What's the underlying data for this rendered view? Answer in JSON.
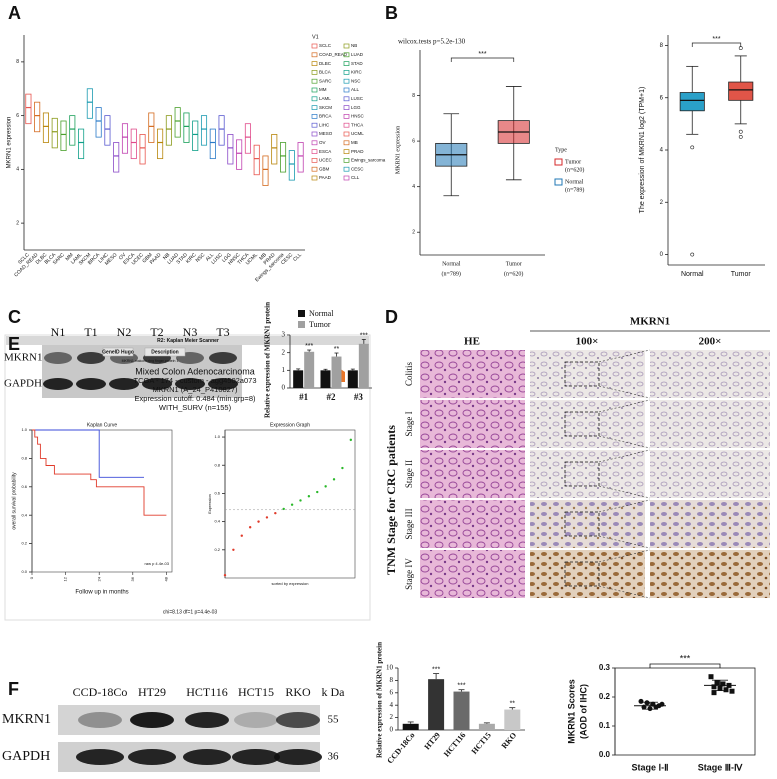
{
  "panel_labels": [
    "A",
    "B",
    "C",
    "D",
    "E",
    "F"
  ],
  "blot_c": {
    "lanes": [
      "N1",
      "T1",
      "N2",
      "T2",
      "N3",
      "T3"
    ],
    "rows": [
      "MKRN1",
      "GAPDH"
    ]
  },
  "ihc_d": {
    "title": "MKRN1",
    "columns": [
      "HE",
      "100×",
      "200×"
    ],
    "rows": [
      "Colitis",
      "Stage I",
      "Stage II",
      "Stage III",
      "Stage IV"
    ],
    "group": "TNM Stage for CRC patients"
  },
  "km_header": {
    "header": "R2: Kaplan Meier Scanner",
    "tabs": [
      "GeneID Hugo",
      "Description"
    ],
    "gene_desc": "MKRN1 makorin ring finger protein 1",
    "lines": [
      "Mixed Colon Adenocarcinoma",
      "TCGA - 174 - custom - agg4502a073",
      "MKRN1 (A_24_P410827)",
      "Expression cutoff: 0.484 (min.grp=8)",
      "WITH_SURV (n=155)"
    ],
    "footer": "chi=8.13 df=1 p=4.4e-03"
  },
  "blot_f": {
    "lanes": [
      "CCD-18Co",
      "HT29",
      "HCT116",
      "HCT15",
      "RKO"
    ],
    "rows": [
      "MKRN1",
      "GAPDH"
    ],
    "kda_label": "k Da",
    "kda": [
      "55",
      "36"
    ]
  },
  "chart_data": [
    {
      "type": "box",
      "y_label": "MKRN1 expression",
      "legend_title": "V1",
      "categories": [
        "SCLC",
        "COAD_READ",
        "DLBC",
        "BLCA",
        "SARC",
        "MM",
        "LAML",
        "SKCM",
        "BRCA",
        "LIHC",
        "MESO",
        "OV",
        "ESCA",
        "UCEC",
        "GBM",
        "PAAD",
        "NB",
        "LUAD",
        "STAD",
        "KIRC",
        "NSC",
        "ALL",
        "LUSC",
        "LGG",
        "HNSC",
        "THCA",
        "UCML",
        "MB",
        "PRAD",
        "Ewings_sarcoma",
        "CESC",
        "CLL"
      ],
      "median": [
        6.3,
        6.0,
        5.6,
        5.4,
        5.3,
        5.5,
        5.0,
        6.5,
        5.8,
        5.5,
        4.5,
        5.2,
        5.0,
        4.8,
        5.6,
        5.0,
        5.5,
        5.8,
        5.6,
        5.3,
        5.5,
        5.0,
        5.5,
        4.8,
        4.6,
        5.2,
        4.4,
        4.0,
        4.8,
        4.5,
        4.2,
        4.5
      ],
      "q1": [
        5.7,
        5.4,
        5.0,
        4.8,
        4.7,
        4.9,
        4.4,
        5.9,
        5.2,
        4.9,
        3.9,
        4.6,
        4.4,
        4.2,
        5.0,
        4.4,
        4.9,
        5.2,
        5.0,
        4.7,
        4.9,
        4.4,
        4.9,
        4.2,
        4.0,
        4.6,
        3.8,
        3.4,
        4.2,
        3.9,
        3.6,
        3.9
      ],
      "q3": [
        6.8,
        6.5,
        6.1,
        5.9,
        5.8,
        6.0,
        5.5,
        7.0,
        6.3,
        6.0,
        5.0,
        5.7,
        5.5,
        5.3,
        6.1,
        5.5,
        6.0,
        6.3,
        6.1,
        5.8,
        6.0,
        5.5,
        6.0,
        5.3,
        5.1,
        5.7,
        4.9,
        4.5,
        5.3,
        5.0,
        4.7,
        5.0
      ],
      "colors": [
        "#e8554e",
        "#d46a1f",
        "#b8860b",
        "#8a9a1a",
        "#4aa02c",
        "#1aa05a",
        "#10a08a",
        "#1a9ab0",
        "#2a7ac8",
        "#5a5ad0",
        "#8a4ac8",
        "#c040b0",
        "#e04a8a",
        "#e8554e",
        "#d46a1f",
        "#b8860b",
        "#8a9a1a",
        "#4aa02c",
        "#1aa05a",
        "#10a08a",
        "#1a9ab0",
        "#2a7ac8",
        "#5a5ad0",
        "#8a4ac8",
        "#c040b0",
        "#e04a8a",
        "#e8554e",
        "#d46a1f",
        "#b8860b",
        "#4aa02c",
        "#1a9ab0",
        "#c040b0"
      ],
      "ylim": [
        1,
        9
      ],
      "yticks": [
        2,
        4,
        6,
        8
      ]
    },
    {
      "type": "box",
      "y_label": "MKRN1 expression",
      "annotation": "wilcox.tests p=5.2e-130",
      "significance": "***",
      "legend_title": "Type",
      "categories": [
        "Normal",
        "Tumor"
      ],
      "series": [
        {
          "name": "Normal",
          "note": "(n=789)",
          "color": "#1f77b4",
          "min": 3.6,
          "q1": 4.9,
          "median": 5.4,
          "q3": 5.9,
          "max": 7.2,
          "outliers": []
        },
        {
          "name": "Tumor",
          "note": "(n=620)",
          "color": "#d62728",
          "min": 4.3,
          "q1": 5.9,
          "median": 6.4,
          "q3": 6.9,
          "max": 8.4,
          "outliers": []
        }
      ],
      "ylim": [
        1,
        10
      ],
      "yticks": [
        2,
        4,
        6,
        8
      ]
    },
    {
      "type": "box",
      "y_label": "The expression of MKRN1 log2 (TPM+1)",
      "significance": "***",
      "categories": [
        "Normal",
        "Tumor"
      ],
      "boxes": [
        {
          "color": "#2aa0c8",
          "min": 4.6,
          "q1": 5.5,
          "median": 5.9,
          "q3": 6.2,
          "max": 7.2,
          "outliers": [
            4.1,
            0
          ]
        },
        {
          "color": "#e05548",
          "min": 5.0,
          "q1": 5.9,
          "median": 6.3,
          "q3": 6.6,
          "max": 7.6,
          "outliers": [
            4.5,
            4.7,
            7.9
          ]
        }
      ],
      "ylim": [
        -0.4,
        8.4
      ],
      "yticks": [
        0,
        2,
        4,
        6,
        8
      ]
    },
    {
      "type": "bar",
      "y_label": "Relative expression of MKRN1 protein",
      "categories": [
        "#1",
        "#2",
        "#3"
      ],
      "series": [
        {
          "name": "Normal",
          "color": "#111111",
          "values": [
            1,
            1,
            1
          ],
          "errors": [
            0.08,
            0.06,
            0.07
          ]
        },
        {
          "name": "Tumor",
          "color": "#a0a0a0",
          "values": [
            2.05,
            1.78,
            2.5
          ],
          "errors": [
            0.1,
            0.2,
            0.25
          ]
        }
      ],
      "significance": [
        "***",
        "**",
        "***"
      ],
      "ylim": [
        0,
        3
      ],
      "yticks": [
        0,
        1,
        2,
        3
      ]
    },
    {
      "type": "line",
      "title": "Kaplan Curve",
      "y_label": "overall survival probability",
      "x_label": "Follow up in months",
      "annotation": "raw p 4.4e-03",
      "series": [
        {
          "color": "#3a4ad8",
          "x": [
            0,
            24,
            40
          ],
          "y": [
            1,
            0.667,
            0.667
          ]
        },
        {
          "color": "#e03a2a",
          "x": [
            0,
            1,
            2,
            3,
            5,
            8,
            21,
            23,
            40,
            48
          ],
          "y": [
            1,
            0.95,
            0.9,
            0.8,
            0.75,
            0.69,
            0.65,
            0.6,
            0.4,
            0.4
          ]
        }
      ],
      "xlim": [
        0,
        50
      ],
      "xticks": [
        0,
        12,
        24,
        36,
        48
      ],
      "ylim": [
        0,
        1
      ],
      "yticks": [
        {
          "value": 0,
          "label": "0.0"
        },
        0.2,
        0.4,
        0.6,
        0.8,
        {
          "value": 1,
          "label": "1.0"
        }
      ]
    },
    {
      "type": "scatter",
      "title": "Expression Graph",
      "y_label": "Expression",
      "x_label": "sorted by expression",
      "cutoff": 0.484,
      "series": [
        {
          "color": "#e03a2a",
          "x": [
            0,
            10,
            20,
            30,
            40,
            50,
            60
          ],
          "y": [
            0.02,
            0.2,
            0.3,
            0.36,
            0.4,
            0.43,
            0.46
          ]
        },
        {
          "color": "#2ab82a",
          "x": [
            70,
            80,
            90,
            100,
            110,
            120,
            130,
            140,
            150
          ],
          "y": [
            0.49,
            0.52,
            0.55,
            0.58,
            0.61,
            0.65,
            0.7,
            0.78,
            0.98
          ]
        }
      ],
      "xlim": [
        0,
        155
      ],
      "ylim": [
        0,
        1.05
      ],
      "yticks": [
        0.2,
        0.4,
        0.6,
        0.8,
        {
          "value": 1,
          "label": "1.0"
        }
      ]
    },
    {
      "type": "bar",
      "y_label": "Relative expression of MKRN1 protein",
      "categories": [
        "CCD-18Co",
        "HT29",
        "HCT116",
        "HCT15",
        "RKO"
      ],
      "values": [
        1,
        8.2,
        6.2,
        1,
        3.3
      ],
      "errors": [
        0.3,
        0.9,
        0.3,
        0.15,
        0.3
      ],
      "colors": [
        "#111111",
        "#333333",
        "#6a6a6a",
        "#aaaaaa",
        "#c8c8c8"
      ],
      "significance": [
        null,
        "***",
        "***",
        null,
        "**"
      ],
      "ylim": [
        0,
        10
      ],
      "yticks": [
        0,
        2,
        4,
        6,
        8,
        10
      ]
    },
    {
      "type": "scatter",
      "y_label": [
        "MKRN1 Scores",
        "(AOD of IHC)"
      ],
      "significance": "***",
      "categories": [
        "Stage Ⅰ-Ⅱ",
        "Stage Ⅲ-Ⅳ"
      ],
      "points": [
        [
          0.185,
          0.18,
          0.175,
          0.17,
          0.165,
          0.16,
          0.165,
          0.175
        ],
        [
          0.27,
          0.25,
          0.245,
          0.24,
          0.235,
          0.23,
          0.225,
          0.22,
          0.215
        ]
      ],
      "means": [
        0.17,
        0.24
      ],
      "sd": [
        0.012,
        0.018
      ],
      "ylim": [
        0,
        0.3
      ],
      "yticks": [
        {
          "value": 0,
          "label": "0.0"
        },
        0.1,
        0.2,
        0.3
      ]
    }
  ]
}
